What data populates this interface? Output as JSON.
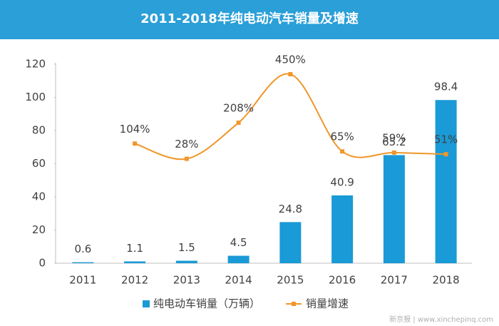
{
  "chart_data": {
    "type": "bar-line",
    "title": "2011-2018年纯电动汽车销量及增速",
    "categories": [
      "2011",
      "2012",
      "2013",
      "2014",
      "2015",
      "2016",
      "2017",
      "2018"
    ],
    "series": [
      {
        "name": "纯电动车销量（万辆）",
        "type": "bar",
        "color": "#1a9ad6",
        "values": [
          0.6,
          1.1,
          1.5,
          4.5,
          24.8,
          40.9,
          65.2,
          98.4
        ]
      },
      {
        "name": "销量增速",
        "type": "line",
        "axis": "y2",
        "color": "#f0962a",
        "values": [
          null,
          104,
          28,
          208,
          450,
          65,
          59,
          51
        ],
        "value_labels": [
          null,
          "104%",
          "28%",
          "208%",
          "450%",
          "65%",
          "59%",
          "51%"
        ]
      }
    ],
    "ylim": [
      0,
      120
    ],
    "yticks": [
      0,
      20,
      40,
      60,
      80,
      100,
      120
    ],
    "y2lim": [
      -493,
      500
    ],
    "legend": "bottom",
    "watermark": "新京报 | www.xinchepinq.com"
  }
}
